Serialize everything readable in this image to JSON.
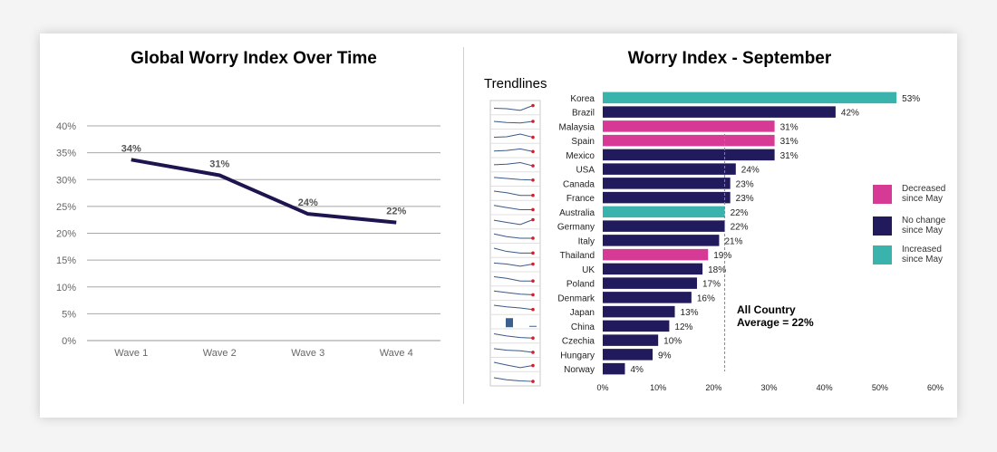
{
  "left_title": "Global Worry Index Over Time",
  "right_title": "Worry Index - September",
  "trendlines_label": "Trendlines",
  "annotation_line1": "All Country",
  "annotation_line2": "Average = 22%",
  "legend": [
    {
      "label_line1": "Decreased",
      "label_line2": "since May",
      "color": "#d63a95"
    },
    {
      "label_line1": "No change",
      "label_line2": "since May",
      "color": "#211a5c"
    },
    {
      "label_line1": "Increased",
      "label_line2": "since May",
      "color": "#3ab3ad"
    }
  ],
  "chart_data": [
    {
      "type": "line",
      "title": "Global Worry Index Over Time",
      "categories": [
        "Wave 1",
        "Wave 2",
        "Wave 3",
        "Wave 4"
      ],
      "values": [
        33.7,
        30.8,
        23.6,
        22.0
      ],
      "data_labels": [
        "34%",
        "31%",
        "24%",
        "22%"
      ],
      "y_ticks": [
        "0%",
        "5%",
        "10%",
        "15%",
        "20%",
        "25%",
        "30%",
        "35%",
        "40%"
      ],
      "ylim": [
        0,
        40
      ],
      "grid": true,
      "line_color": "#1c1550"
    },
    {
      "type": "bar",
      "orientation": "horizontal",
      "title": "Worry Index - September",
      "categories": [
        "Korea",
        "Brazil",
        "Malaysia",
        "Spain",
        "Mexico",
        "USA",
        "Canada",
        "France",
        "Australia",
        "Germany",
        "Italy",
        "Thailand",
        "UK",
        "Poland",
        "Denmark",
        "Japan",
        "China",
        "Czechia",
        "Hungary",
        "Norway"
      ],
      "values": [
        53,
        42,
        31,
        31,
        31,
        24,
        23,
        23,
        22,
        22,
        21,
        19,
        18,
        17,
        16,
        13,
        12,
        10,
        9,
        4
      ],
      "data_labels": [
        "53%",
        "42%",
        "31%",
        "31%",
        "31%",
        "24%",
        "23%",
        "23%",
        "22%",
        "22%",
        "21%",
        "19%",
        "18%",
        "17%",
        "16%",
        "13%",
        "12%",
        "10%",
        "9%",
        "4%"
      ],
      "change_since_may": [
        "increased",
        "no change",
        "decreased",
        "decreased",
        "no change",
        "no change",
        "no change",
        "no change",
        "increased",
        "no change",
        "no change",
        "decreased",
        "no change",
        "no change",
        "no change",
        "no change",
        "no change",
        "no change",
        "no change",
        "no change"
      ],
      "x_ticks": [
        "0%",
        "10%",
        "20%",
        "30%",
        "40%",
        "50%",
        "60%"
      ],
      "xlim": [
        0,
        60
      ],
      "reference_line": 22,
      "legend_placement": "right"
    }
  ]
}
